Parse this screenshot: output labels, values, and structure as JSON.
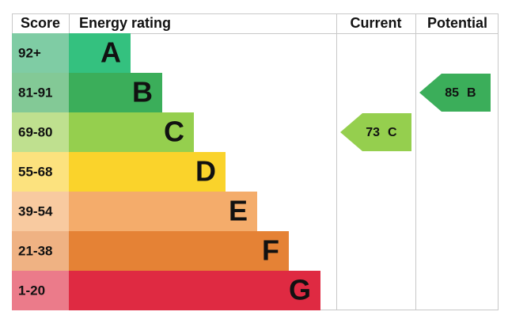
{
  "header": {
    "score": "Score",
    "rating": "Energy rating",
    "current": "Current",
    "potential": "Potential"
  },
  "bands": [
    {
      "score": "92+",
      "letter": "A",
      "color": "#34c17f",
      "light": "#7fcca4"
    },
    {
      "score": "81-91",
      "letter": "B",
      "color": "#3bae5a",
      "light": "#83c996"
    },
    {
      "score": "69-80",
      "letter": "C",
      "color": "#95cf4e",
      "light": "#bfe08f"
    },
    {
      "score": "55-68",
      "letter": "D",
      "color": "#fad32b",
      "light": "#fce27e"
    },
    {
      "score": "39-54",
      "letter": "E",
      "color": "#f4ac6b",
      "light": "#f8caa0"
    },
    {
      "score": "21-38",
      "letter": "F",
      "color": "#e58235",
      "light": "#efb283"
    },
    {
      "score": "1-20",
      "letter": "G",
      "color": "#df2a42",
      "light": "#eb7b8a"
    }
  ],
  "current": {
    "value": 73,
    "letter": "C"
  },
  "potential": {
    "value": 85,
    "letter": "B"
  }
}
